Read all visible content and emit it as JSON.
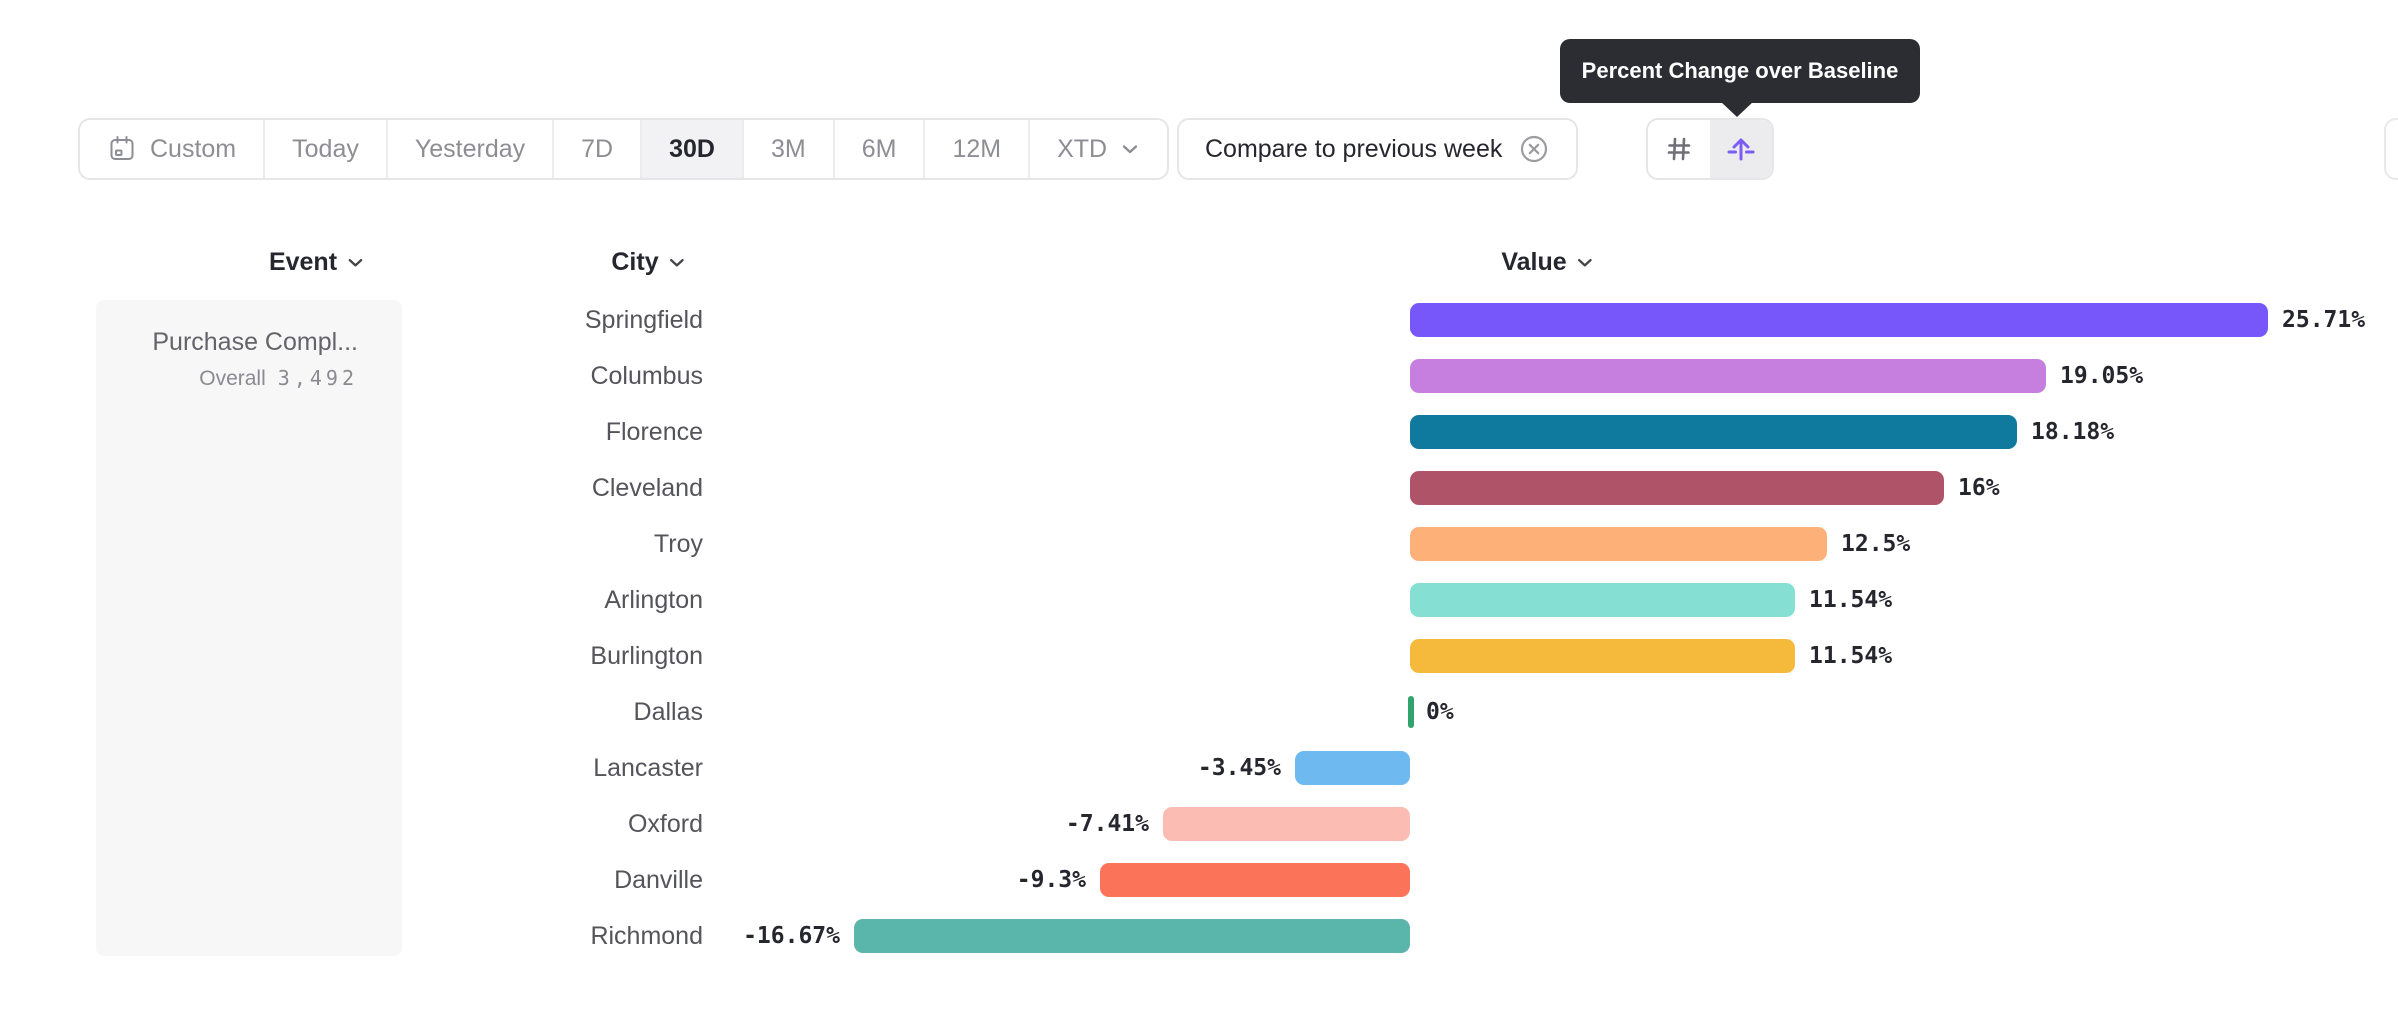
{
  "tooltip": {
    "text": "Percent Change over Baseline"
  },
  "toolbar": {
    "date_ranges": [
      {
        "label": "Custom",
        "selected": false,
        "icon": "calendar-icon"
      },
      {
        "label": "Today",
        "selected": false
      },
      {
        "label": "Yesterday",
        "selected": false
      },
      {
        "label": "7D",
        "selected": false
      },
      {
        "label": "30D",
        "selected": true
      },
      {
        "label": "3M",
        "selected": false
      },
      {
        "label": "6M",
        "selected": false
      },
      {
        "label": "12M",
        "selected": false
      },
      {
        "label": "XTD",
        "selected": false,
        "has_chevron": true
      }
    ],
    "compare_label": "Compare to previous week",
    "view_toggles": [
      {
        "name": "numbers-view",
        "icon": "hash-icon",
        "selected": false
      },
      {
        "name": "percent-change-over-baseline-view",
        "icon": "arrow-up-from-baseline-icon",
        "selected": true
      }
    ]
  },
  "column_headers": {
    "event": "Event",
    "city": "City",
    "value": "Value"
  },
  "event_card": {
    "name": "Purchase Compl...",
    "overall_label": "Overall",
    "overall_value": "3,492"
  },
  "chart_data": {
    "type": "bar",
    "orientation": "horizontal",
    "value_unit": "percent_change_over_baseline",
    "categories": [
      "Springfield",
      "Columbus",
      "Florence",
      "Cleveland",
      "Troy",
      "Arlington",
      "Burlington",
      "Dallas",
      "Lancaster",
      "Oxford",
      "Danville",
      "Richmond"
    ],
    "values": [
      25.71,
      19.05,
      18.18,
      16,
      12.5,
      11.54,
      11.54,
      0,
      -3.45,
      -7.41,
      -9.3,
      -16.67
    ],
    "value_labels": [
      "25.71%",
      "19.05%",
      "18.18%",
      "16%",
      "12.5%",
      "11.54%",
      "11.54%",
      "0%",
      "-3.45%",
      "-7.41%",
      "-9.3%",
      "-16.67%"
    ],
    "bar_colors": [
      "#7857FA",
      "#C77FDF",
      "#0F7A9D",
      "#AF5468",
      "#FDB077",
      "#85E0D3",
      "#F5B93B",
      "#30A46C",
      "#6FB9F1",
      "#FBBCB4",
      "#FB7459",
      "#5AB5AB"
    ],
    "zero_tick_color": "#30A46C",
    "xlim": [
      -16.67,
      25.71
    ],
    "baseline": 0,
    "grid": false,
    "legend": false
  },
  "colors": {
    "accent_purple": "#7B5CF5",
    "tooltip_bg": "#2C2D33",
    "border": "#E6E6E9",
    "selected_cell_bg": "#F2F2F4",
    "text_dark": "#26262E",
    "text_gray": "#8D8D94"
  }
}
